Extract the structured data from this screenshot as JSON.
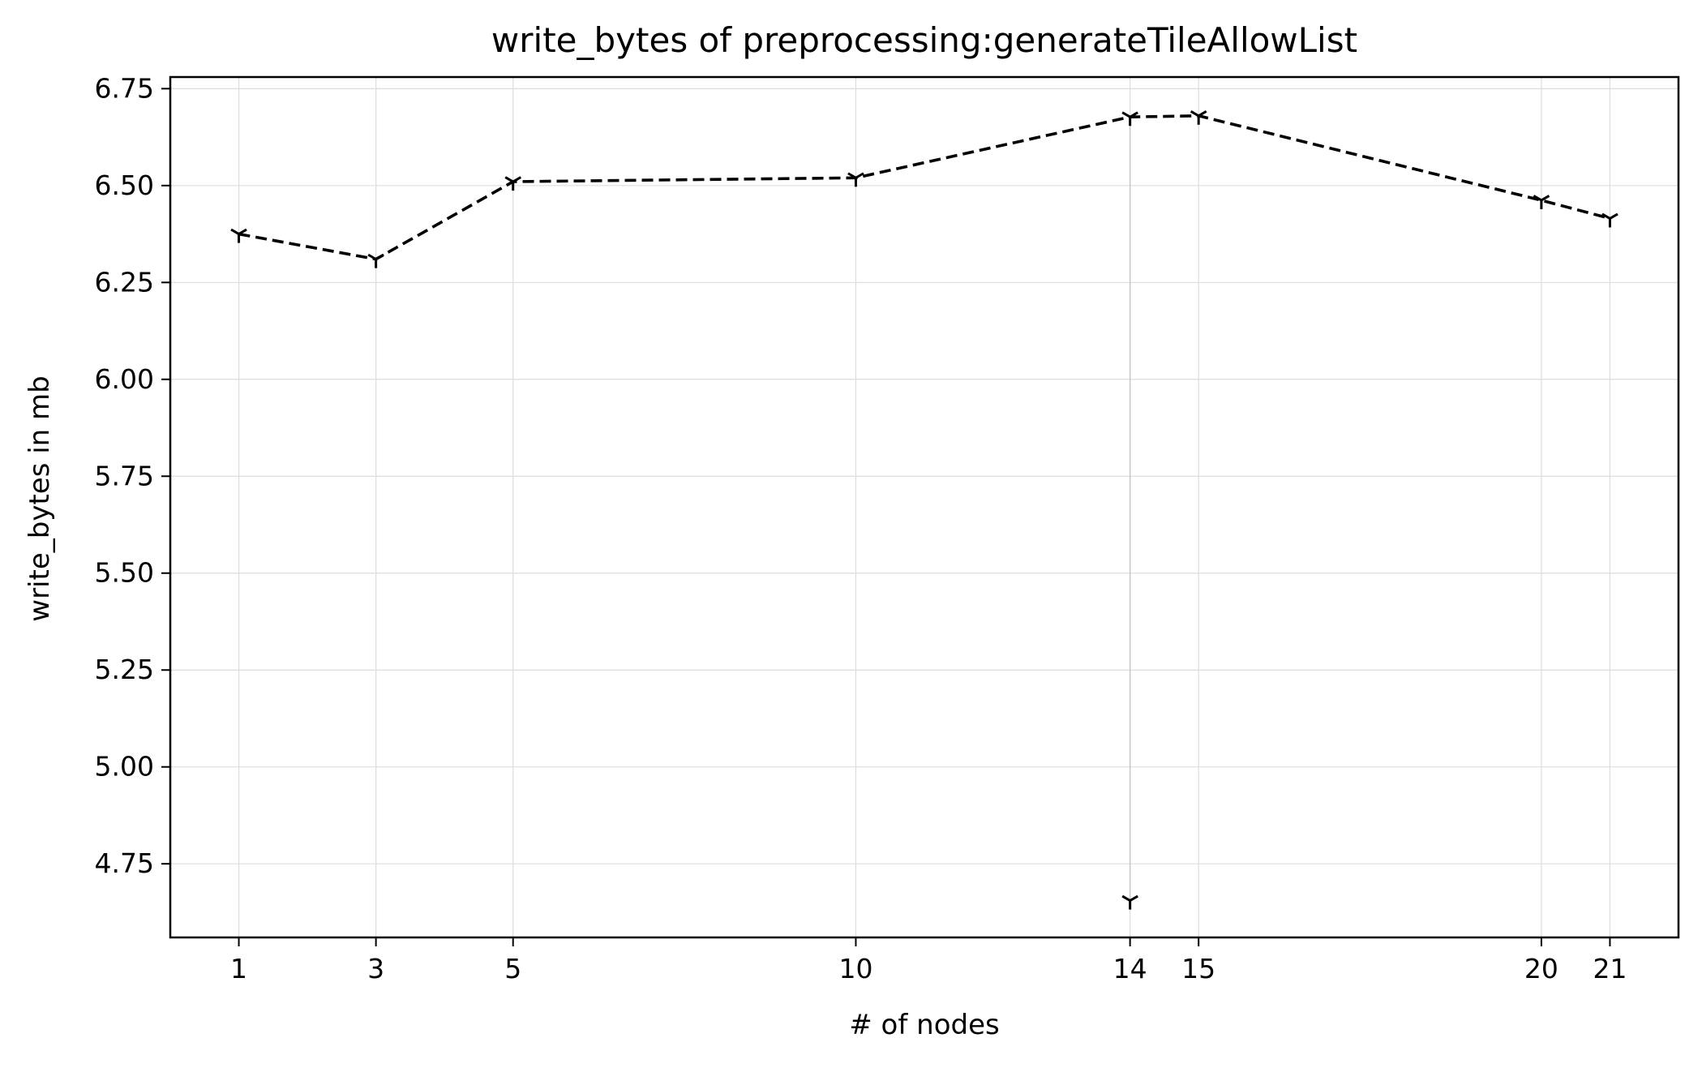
{
  "chart_data": {
    "type": "line",
    "title": "write_bytes of preprocessing:generateTileAllowList",
    "xlabel": "# of nodes",
    "ylabel": "write_bytes in mb",
    "x_ticks": [
      1,
      3,
      5,
      10,
      14,
      15,
      20,
      21
    ],
    "y_ticks": [
      "4.75",
      "5.00",
      "5.25",
      "5.50",
      "5.75",
      "6.00",
      "6.25",
      "6.50",
      "6.75"
    ],
    "xlim": [
      0,
      22
    ],
    "ylim": [
      4.56,
      6.78
    ],
    "grid": true,
    "line_style": "dashed",
    "marker": "tri_down",
    "series": [
      {
        "color": "#000000",
        "x": [
          1,
          3,
          5,
          10,
          14,
          15,
          20,
          21
        ],
        "y": [
          6.375,
          6.31,
          6.51,
          6.52,
          6.677,
          6.68,
          6.462,
          6.415
        ]
      }
    ],
    "outlier_points": [
      {
        "x": 14,
        "y": 4.655
      }
    ],
    "error_spans": [
      {
        "x": 14,
        "y_low": 4.655,
        "y_high": 6.677
      }
    ]
  }
}
